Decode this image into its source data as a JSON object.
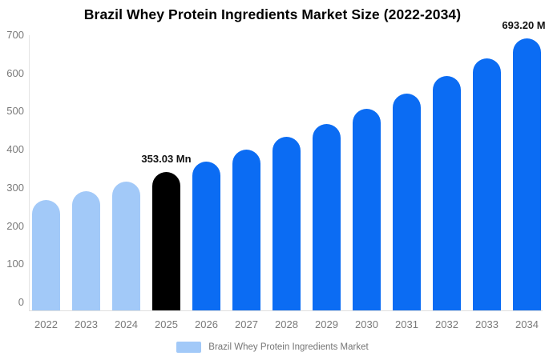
{
  "chart_data": {
    "type": "bar",
    "title": "Brazil Whey Protein Ingredients Market Size (2022-2034)",
    "categories": [
      "2022",
      "2023",
      "2024",
      "2025",
      "2026",
      "2027",
      "2028",
      "2029",
      "2030",
      "2031",
      "2032",
      "2033",
      "2034"
    ],
    "values": [
      282,
      304,
      328,
      353.03,
      380,
      410,
      442,
      476,
      514,
      553,
      597,
      643,
      693.2
    ],
    "unit": "Mn",
    "xlabel": "",
    "ylabel": "",
    "ylim": [
      0,
      700
    ],
    "yticks": [
      0,
      100,
      200,
      300,
      400,
      500,
      600,
      700
    ],
    "grid": false,
    "legend_position": "bottom",
    "color_roles": [
      "historical",
      "historical",
      "historical",
      "highlight",
      "forecast",
      "forecast",
      "forecast",
      "forecast",
      "forecast",
      "forecast",
      "forecast",
      "forecast",
      "forecast"
    ],
    "colors": {
      "historical": "#a2c9f8",
      "highlight": "#000000",
      "forecast": "#0b6cf3"
    },
    "data_labels": {
      "2025": "353.03 Mn",
      "2034": "693.20 Mn"
    },
    "legend": [
      {
        "label": "Brazil Whey Protein Ingredients Market",
        "color": "#a2c9f8"
      }
    ]
  },
  "ui_colors": {
    "background": "#ffffff",
    "title_text": "#000000",
    "axis_text": "#7a7a7a",
    "legend_text": "#757575",
    "axis_line": "#e4e4e4",
    "data_label_text": "#111111"
  }
}
